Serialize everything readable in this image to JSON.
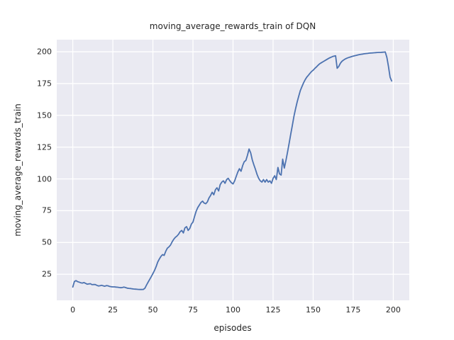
{
  "colors": {
    "figure_background": "#ffffff",
    "axes_background": "#eaeaf2",
    "grid": "#ffffff",
    "line": "#4c72b0",
    "text": "#262626"
  },
  "chart_data": {
    "type": "line",
    "title": "moving_average_rewards_train of DQN",
    "xlabel": "episodes",
    "ylabel": "moving_average_rewards_train",
    "x_ticks": [
      0,
      25,
      50,
      75,
      100,
      125,
      150,
      175,
      200
    ],
    "y_ticks": [
      25,
      50,
      75,
      100,
      125,
      150,
      175,
      200
    ],
    "xlim": [
      -10,
      210
    ],
    "ylim": [
      4.5,
      209.5
    ],
    "grid": true,
    "legend": "none",
    "series": [
      {
        "name": "moving_average_rewards_train",
        "color": "#4c72b0",
        "points": [
          [
            0,
            15.0
          ],
          [
            1,
            19.3
          ],
          [
            2,
            20.0
          ],
          [
            3,
            19.2
          ],
          [
            4,
            18.8
          ],
          [
            5,
            18.3
          ],
          [
            6,
            18.1
          ],
          [
            7,
            18.5
          ],
          [
            8,
            17.8
          ],
          [
            9,
            17.2
          ],
          [
            10,
            17.4
          ],
          [
            11,
            17.6
          ],
          [
            12,
            16.8
          ],
          [
            13,
            17.0
          ],
          [
            14,
            16.9
          ],
          [
            15,
            16.3
          ],
          [
            16,
            15.8
          ],
          [
            17,
            16.0
          ],
          [
            18,
            16.3
          ],
          [
            19,
            15.9
          ],
          [
            20,
            15.6
          ],
          [
            21,
            16.1
          ],
          [
            22,
            15.9
          ],
          [
            23,
            15.4
          ],
          [
            24,
            15.2
          ],
          [
            25,
            15.1
          ],
          [
            26,
            15.1
          ],
          [
            27,
            14.9
          ],
          [
            28,
            14.8
          ],
          [
            29,
            14.6
          ],
          [
            30,
            14.4
          ],
          [
            31,
            14.6
          ],
          [
            32,
            14.9
          ],
          [
            33,
            14.5
          ],
          [
            34,
            14.1
          ],
          [
            35,
            13.9
          ],
          [
            36,
            13.8
          ],
          [
            37,
            13.6
          ],
          [
            38,
            13.4
          ],
          [
            39,
            13.3
          ],
          [
            40,
            13.2
          ],
          [
            41,
            13.1
          ],
          [
            42,
            13.0
          ],
          [
            43,
            13.0
          ],
          [
            44,
            13.1
          ],
          [
            45,
            14.0
          ],
          [
            46,
            16.5
          ],
          [
            47,
            18.8
          ],
          [
            48,
            21.0
          ],
          [
            49,
            23.2
          ],
          [
            50,
            25.5
          ],
          [
            51,
            28.0
          ],
          [
            52,
            31.0
          ],
          [
            53,
            34.5
          ],
          [
            54,
            37.0
          ],
          [
            55,
            39.0
          ],
          [
            56,
            40.5
          ],
          [
            57,
            39.8
          ],
          [
            58,
            43.0
          ],
          [
            59,
            45.5
          ],
          [
            60,
            46.5
          ],
          [
            61,
            48.0
          ],
          [
            62,
            50.5
          ],
          [
            63,
            52.5
          ],
          [
            64,
            54.0
          ],
          [
            65,
            55.0
          ],
          [
            66,
            56.5
          ],
          [
            67,
            58.5
          ],
          [
            68,
            59.5
          ],
          [
            69,
            57.5
          ],
          [
            70,
            61.5
          ],
          [
            71,
            62.5
          ],
          [
            72,
            59.5
          ],
          [
            73,
            61.0
          ],
          [
            74,
            64.5
          ],
          [
            75,
            66.0
          ],
          [
            76,
            70.5
          ],
          [
            77,
            74.5
          ],
          [
            78,
            77.5
          ],
          [
            79,
            79.5
          ],
          [
            80,
            81.5
          ],
          [
            81,
            82.5
          ],
          [
            82,
            81.0
          ],
          [
            83,
            80.5
          ],
          [
            84,
            82.0
          ],
          [
            85,
            85.0
          ],
          [
            86,
            87.0
          ],
          [
            87,
            89.5
          ],
          [
            88,
            87.5
          ],
          [
            89,
            91.5
          ],
          [
            90,
            93.0
          ],
          [
            91,
            90.5
          ],
          [
            92,
            95.5
          ],
          [
            93,
            97.5
          ],
          [
            94,
            98.5
          ],
          [
            95,
            96.5
          ],
          [
            96,
            99.5
          ],
          [
            97,
            100.5
          ],
          [
            98,
            98.5
          ],
          [
            99,
            97.0
          ],
          [
            100,
            96.0
          ],
          [
            101,
            98.5
          ],
          [
            102,
            102.0
          ],
          [
            103,
            105.5
          ],
          [
            104,
            108.0
          ],
          [
            105,
            106.0
          ],
          [
            106,
            110.5
          ],
          [
            107,
            113.5
          ],
          [
            108,
            114.5
          ],
          [
            109,
            118.5
          ],
          [
            110,
            123.5
          ],
          [
            111,
            120.5
          ],
          [
            112,
            115.0
          ],
          [
            113,
            111.0
          ],
          [
            114,
            107.5
          ],
          [
            115,
            103.5
          ],
          [
            116,
            100.5
          ],
          [
            117,
            98.5
          ],
          [
            118,
            97.5
          ],
          [
            119,
            99.5
          ],
          [
            120,
            97.5
          ],
          [
            121,
            99.5
          ],
          [
            122,
            97.5
          ],
          [
            123,
            98.5
          ],
          [
            124,
            96.5
          ],
          [
            125,
            100.5
          ],
          [
            126,
            102.5
          ],
          [
            127,
            99.5
          ],
          [
            128,
            109.0
          ],
          [
            129,
            104.0
          ],
          [
            130,
            103.0
          ],
          [
            131,
            115.5
          ],
          [
            132,
            108.5
          ],
          [
            133,
            114.5
          ],
          [
            134,
            121.0
          ],
          [
            135,
            128.0
          ],
          [
            136,
            135.0
          ],
          [
            137,
            142.0
          ],
          [
            138,
            149.0
          ],
          [
            139,
            155.0
          ],
          [
            140,
            160.5
          ],
          [
            141,
            165.0
          ],
          [
            142,
            169.5
          ],
          [
            143,
            172.5
          ],
          [
            144,
            175.5
          ],
          [
            145,
            178.0
          ],
          [
            146,
            180.0
          ],
          [
            147,
            181.5
          ],
          [
            148,
            183.0
          ],
          [
            149,
            184.5
          ],
          [
            150,
            185.5
          ],
          [
            151,
            186.8
          ],
          [
            152,
            188.0
          ],
          [
            153,
            189.3
          ],
          [
            154,
            190.5
          ],
          [
            155,
            191.3
          ],
          [
            156,
            192.0
          ],
          [
            157,
            192.8
          ],
          [
            158,
            193.5
          ],
          [
            159,
            194.3
          ],
          [
            160,
            195.0
          ],
          [
            161,
            195.6
          ],
          [
            162,
            196.2
          ],
          [
            163,
            196.5
          ],
          [
            164,
            196.8
          ],
          [
            165,
            187.0
          ],
          [
            166,
            188.5
          ],
          [
            167,
            191.0
          ],
          [
            168,
            192.5
          ],
          [
            169,
            193.5
          ],
          [
            170,
            194.3
          ],
          [
            171,
            194.9
          ],
          [
            172,
            195.4
          ],
          [
            173,
            195.8
          ],
          [
            174,
            196.2
          ],
          [
            175,
            196.6
          ],
          [
            176,
            196.9
          ],
          [
            177,
            197.2
          ],
          [
            178,
            197.5
          ],
          [
            179,
            197.8
          ],
          [
            180,
            198.0
          ],
          [
            181,
            198.2
          ],
          [
            182,
            198.4
          ],
          [
            183,
            198.6
          ],
          [
            184,
            198.7
          ],
          [
            185,
            198.9
          ],
          [
            186,
            199.0
          ],
          [
            187,
            199.1
          ],
          [
            188,
            199.2
          ],
          [
            189,
            199.3
          ],
          [
            190,
            199.4
          ],
          [
            191,
            199.5
          ],
          [
            192,
            199.5
          ],
          [
            193,
            199.6
          ],
          [
            194,
            199.7
          ],
          [
            195,
            199.8
          ],
          [
            196,
            195.5
          ],
          [
            197,
            188.5
          ],
          [
            198,
            180.0
          ],
          [
            199,
            177.0
          ]
        ]
      }
    ]
  }
}
